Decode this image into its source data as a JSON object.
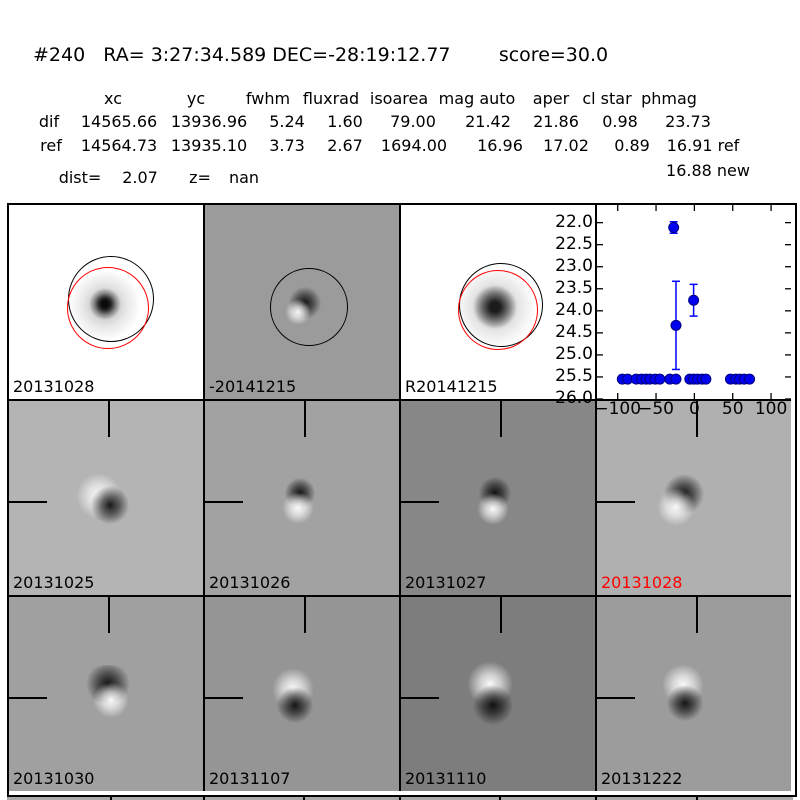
{
  "header": {
    "title": "#240   RA= 3:27:34.589 DEC=-28:19:12.77        score=30.0"
  },
  "table": {
    "headers": [
      "xc",
      "yc",
      "fwhm",
      "fluxrad",
      "isoarea",
      "mag auto",
      "aper",
      "cl star",
      "phmag"
    ],
    "dif": [
      "dif",
      "14565.66",
      "13936.96",
      "5.24",
      "1.60",
      "79.00",
      "21.42",
      "21.86",
      "0.98",
      "23.73"
    ],
    "ref": [
      "ref",
      "14564.73",
      "13935.10",
      "3.73",
      "2.67",
      "1694.00",
      "16.96",
      "17.02",
      "0.89",
      "16.91 ref"
    ],
    "extra": "16.88 new",
    "dist_label": "dist=",
    "dist_value": "2.07",
    "z_label": "z=",
    "z_value": "nan"
  },
  "panels": [
    {
      "label": "20131028",
      "label_color": "#000000",
      "bg": "#ffffff"
    },
    {
      "label": "-20141215",
      "label_color": "#000000",
      "bg": "#9b9b9b"
    },
    {
      "label": "R20141215",
      "label_color": "#000000",
      "bg": "#ffffff"
    },
    {
      "label": "",
      "label_color": "#000000",
      "bg": "#ffffff"
    },
    {
      "label": "20131025",
      "label_color": "#000000",
      "bg": "#b4b4b4"
    },
    {
      "label": "20131026",
      "label_color": "#000000",
      "bg": "#a2a2a2"
    },
    {
      "label": "20131027",
      "label_color": "#000000",
      "bg": "#878787"
    },
    {
      "label": "20131028",
      "label_color": "#ff0000",
      "bg": "#b0b0b0"
    },
    {
      "label": "20131030",
      "label_color": "#000000",
      "bg": "#a0a0a0"
    },
    {
      "label": "20131107",
      "label_color": "#000000",
      "bg": "#959595"
    },
    {
      "label": "20131110",
      "label_color": "#000000",
      "bg": "#7d7d7d"
    },
    {
      "label": "20131222",
      "label_color": "#000000",
      "bg": "#9c9c9c"
    }
  ],
  "chart_data": {
    "type": "scatter",
    "title": "",
    "xlabel": "",
    "ylabel": "",
    "xlim": [
      -127,
      126
    ],
    "ylim": [
      26.0,
      21.6
    ],
    "grid": false,
    "xticks": [
      {
        "v": -100,
        "label": "−100"
      },
      {
        "v": -50,
        "label": "−50"
      },
      {
        "v": 0,
        "label": "0"
      },
      {
        "v": 50,
        "label": "50"
      },
      {
        "v": 100,
        "label": "100"
      }
    ],
    "yticks": [
      {
        "v": 22.0,
        "label": "22.0"
      },
      {
        "v": 22.5,
        "label": "22.5"
      },
      {
        "v": 23.0,
        "label": "23.0"
      },
      {
        "v": 23.5,
        "label": "23.5"
      },
      {
        "v": 24.0,
        "label": "24.0"
      },
      {
        "v": 24.5,
        "label": "24.5"
      },
      {
        "v": 25.0,
        "label": "25.0"
      },
      {
        "v": 25.5,
        "label": "25.5"
      },
      {
        "v": 26.0,
        "label": "26.0"
      }
    ],
    "marker_color": "#0000ee",
    "marker_edge_color": "#000080",
    "errorbar_color": "#0000ff",
    "detections": [
      {
        "x": -27,
        "y": 22.11,
        "err": 0.13
      },
      {
        "x": -24,
        "y": 24.33,
        "err": 1.0
      },
      {
        "x": -1,
        "y": 23.76,
        "err": 0.36
      }
    ],
    "upper_limits": [
      {
        "x": -94,
        "y": 25.55,
        "err": 0.07
      },
      {
        "x": -87,
        "y": 25.55,
        "err": 0.07
      },
      {
        "x": -76,
        "y": 25.55,
        "err": 0.07
      },
      {
        "x": -69,
        "y": 25.55,
        "err": 0.07
      },
      {
        "x": -63,
        "y": 25.55,
        "err": 0.07
      },
      {
        "x": -58,
        "y": 25.55,
        "err": 0.07
      },
      {
        "x": -51,
        "y": 25.55,
        "err": 0.07
      },
      {
        "x": -45,
        "y": 25.55,
        "err": 0.07
      },
      {
        "x": -32,
        "y": 25.55,
        "err": 0.07
      },
      {
        "x": -24,
        "y": 25.55,
        "err": 0.07
      },
      {
        "x": -6,
        "y": 25.55,
        "err": 0.07
      },
      {
        "x": -1,
        "y": 25.55,
        "err": 0.07
      },
      {
        "x": 4,
        "y": 25.55,
        "err": 0.07
      },
      {
        "x": 10,
        "y": 25.55,
        "err": 0.07
      },
      {
        "x": 15,
        "y": 25.55,
        "err": 0.07
      },
      {
        "x": 47,
        "y": 25.55,
        "err": 0.07
      },
      {
        "x": 54,
        "y": 25.55,
        "err": 0.07
      },
      {
        "x": 59,
        "y": 25.55,
        "err": 0.07
      },
      {
        "x": 65,
        "y": 25.55,
        "err": 0.07
      },
      {
        "x": 72,
        "y": 25.55,
        "err": 0.07
      }
    ]
  }
}
